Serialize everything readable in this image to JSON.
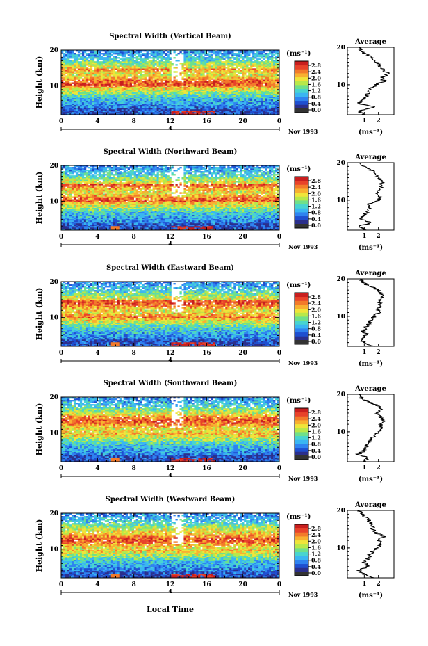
{
  "figure": {
    "xlabel": "Local Time",
    "ylabel": "Height (km)",
    "date_label": "Nov 1993",
    "day_marker": "4",
    "colorbar_unit": "(ms⁻¹)",
    "colorbar_ticks": [
      "2.8",
      "2.4",
      "2.0",
      "1.6",
      "1.2",
      "0.8",
      "0.4",
      "0.0"
    ],
    "avg_title": "Average",
    "avg_unit": "(ms⁻¹)",
    "x_ticks": [
      "0",
      "4",
      "8",
      "12",
      "16",
      "20",
      "0"
    ],
    "y_ticks": [
      "20",
      "10"
    ],
    "colormap": [
      "#2b2f8c",
      "#1f4fd0",
      "#2f83f0",
      "#3ab6f2",
      "#48d4d0",
      "#6fe08a",
      "#b8e84a",
      "#f0e43a",
      "#f8b030",
      "#f27a2a",
      "#e8422a",
      "#c81e1e"
    ]
  },
  "chart_data": [
    {
      "type": "heatmap",
      "title": "Spectral Width (Vertical Beam)",
      "x_range_hours": [
        0,
        24
      ],
      "y_range_km": [
        2,
        20
      ],
      "color_range_ms": [
        0,
        3.0
      ],
      "average": {
        "heights_km": [
          2,
          3,
          4,
          5,
          6,
          7,
          8,
          9,
          10,
          11,
          12,
          13,
          14,
          15,
          16,
          17,
          18,
          19,
          20
        ],
        "values_ms": [
          1.0,
          0.5,
          1.8,
          0.6,
          0.9,
          1.1,
          1.3,
          1.5,
          1.8,
          2.4,
          2.2,
          2.7,
          2.3,
          2.1,
          1.9,
          1.6,
          1.2,
          0.8,
          0.6
        ],
        "xticks": [
          "1",
          "2"
        ]
      }
    },
    {
      "type": "heatmap",
      "title": "Spectral Width (Northward Beam)",
      "x_range_hours": [
        0,
        24
      ],
      "y_range_km": [
        2,
        20
      ],
      "color_range_ms": [
        0,
        3.0
      ],
      "average": {
        "heights_km": [
          2,
          3,
          4,
          5,
          6,
          7,
          8,
          9,
          10,
          11,
          12,
          13,
          14,
          15,
          16,
          17,
          18,
          19,
          20
        ],
        "values_ms": [
          1.0,
          0.6,
          1.5,
          0.7,
          1.0,
          1.2,
          1.3,
          1.4,
          2.0,
          2.1,
          1.9,
          2.2,
          2.1,
          2.4,
          2.0,
          1.9,
          1.5,
          1.1,
          0.6
        ],
        "xticks": [
          "1",
          "2"
        ]
      }
    },
    {
      "type": "heatmap",
      "title": "Spectral Width (Eastward Beam)",
      "x_range_hours": [
        0,
        24
      ],
      "y_range_km": [
        2,
        20
      ],
      "color_range_ms": [
        0,
        3.0
      ],
      "average": {
        "heights_km": [
          2,
          3,
          4,
          5,
          6,
          7,
          8,
          9,
          10,
          11,
          12,
          13,
          14,
          15,
          16,
          17,
          18,
          19,
          20
        ],
        "values_ms": [
          1.6,
          1.0,
          0.7,
          1.2,
          0.9,
          1.1,
          1.3,
          1.5,
          1.7,
          2.0,
          1.9,
          2.2,
          2.0,
          2.4,
          2.2,
          2.0,
          1.4,
          0.9,
          0.7
        ],
        "xticks": [
          "1",
          "2"
        ]
      }
    },
    {
      "type": "heatmap",
      "title": "Spectral Width (Southward Beam)",
      "x_range_hours": [
        0,
        24
      ],
      "y_range_km": [
        2,
        20
      ],
      "color_range_ms": [
        0,
        3.0
      ],
      "average": {
        "heights_km": [
          2,
          3,
          4,
          5,
          6,
          7,
          8,
          9,
          10,
          11,
          12,
          13,
          14,
          15,
          16,
          17,
          18,
          19,
          20
        ],
        "values_ms": [
          0.9,
          1.2,
          0.6,
          1.0,
          1.1,
          1.3,
          1.5,
          1.7,
          2.0,
          2.3,
          2.1,
          2.4,
          2.1,
          1.8,
          2.3,
          1.9,
          1.3,
          0.8,
          0.6
        ],
        "xticks": [
          "1",
          "2"
        ]
      }
    },
    {
      "type": "heatmap",
      "title": "Spectral Width (Westward Beam)",
      "x_range_hours": [
        0,
        24
      ],
      "y_range_km": [
        2,
        20
      ],
      "color_range_ms": [
        0,
        3.0
      ],
      "average": {
        "heights_km": [
          2,
          3,
          4,
          5,
          6,
          7,
          8,
          9,
          10,
          11,
          12,
          13,
          14,
          15,
          16,
          17,
          18,
          19,
          20
        ],
        "values_ms": [
          1.7,
          1.0,
          0.6,
          1.3,
          1.0,
          1.2,
          1.4,
          1.6,
          1.9,
          2.2,
          2.0,
          2.4,
          1.8,
          1.6,
          1.5,
          1.4,
          1.1,
          0.8,
          0.6
        ],
        "xticks": [
          "1",
          "2"
        ]
      }
    }
  ]
}
